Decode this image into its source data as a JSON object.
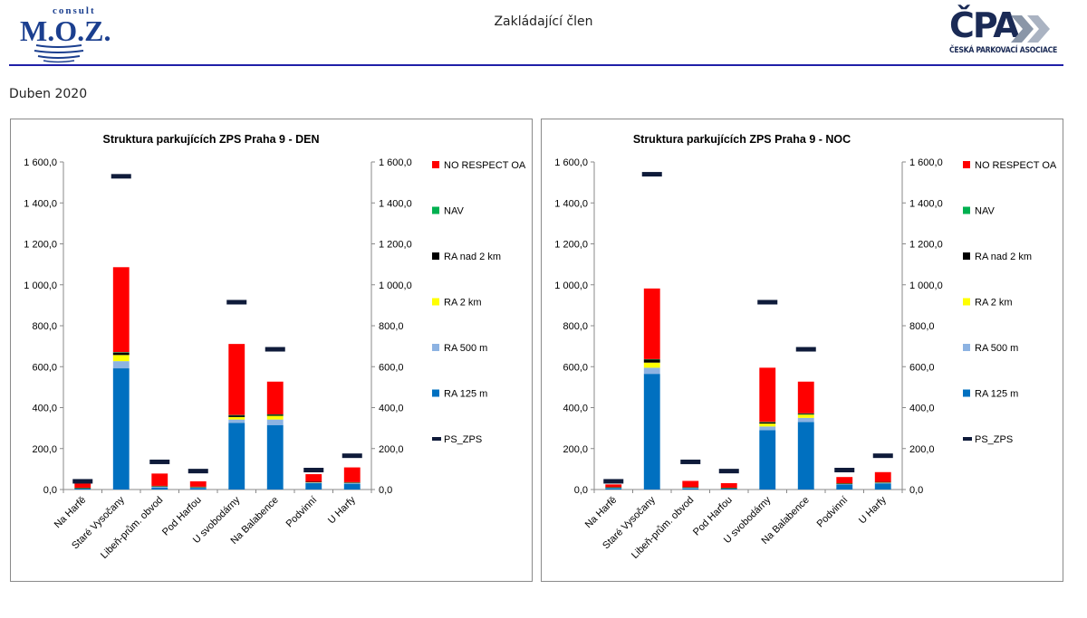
{
  "header": {
    "left_logo": {
      "top_text": "consult",
      "name": "M.O.Z."
    },
    "center_title": "Zakládající člen",
    "right_logo": {
      "big": "ČPA",
      "small": "ČESKÁ PARKOVACÍ ASOCIACE"
    }
  },
  "period": "Duben 2020",
  "colors": {
    "RA_125m": "#0070c0",
    "RA_500m": "#8db3e2",
    "RA_2km": "#ffff00",
    "RA_nad_2km": "#000000",
    "NAV": "#00b050",
    "NO_RESPECT_OA": "#ff0000",
    "PS_ZPS": "#0f1b3a"
  },
  "chart_data": [
    {
      "type": "bar",
      "stacked": true,
      "title": "Struktura parkujících ZPS Praha 9 - DEN",
      "categories": [
        "Na Harfě",
        "Staré Vysočany",
        "Libeň-prům. obvod",
        "Pod Harfou",
        "U svobodárny",
        "Na Balabence",
        "Podvinní",
        "U Harfy"
      ],
      "ylim": [
        0,
        1600
      ],
      "yticks": [
        "0,0",
        "200,0",
        "400,0",
        "600,0",
        "800,0",
        "1 000,0",
        "1 200,0",
        "1 400,0",
        "1 600,0"
      ],
      "legend_position": "right",
      "grid": false,
      "series": [
        {
          "name": "RA 125 m",
          "values": [
            5,
            592,
            10,
            8,
            325,
            315,
            32,
            28
          ]
        },
        {
          "name": "RA 500 m",
          "values": [
            2,
            35,
            5,
            3,
            17,
            27,
            3,
            5
          ]
        },
        {
          "name": "RA 2 km",
          "values": [
            1,
            30,
            2,
            2,
            12,
            18,
            2,
            2
          ]
        },
        {
          "name": "RA nad 2 km",
          "values": [
            1,
            12,
            1,
            1,
            8,
            5,
            1,
            1
          ]
        },
        {
          "name": "NAV",
          "values": [
            0,
            2,
            0,
            0,
            2,
            2,
            0,
            0
          ]
        },
        {
          "name": "NO RESPECT OA",
          "values": [
            21,
            415,
            60,
            26,
            347,
            160,
            37,
            72
          ]
        }
      ],
      "markers": {
        "name": "PS_ZPS",
        "values": [
          40,
          1530,
          135,
          90,
          915,
          685,
          95,
          165
        ]
      }
    },
    {
      "type": "bar",
      "stacked": true,
      "title": "Struktura parkujících ZPS Praha 9 - NOC",
      "categories": [
        "Na Harfě",
        "Staré Vysočany",
        "Libeň-prům. obvod",
        "Pod Harfou",
        "U svobodárny",
        "Na Balabence",
        "Podvinní",
        "U Harfy"
      ],
      "ylim": [
        0,
        1600
      ],
      "yticks": [
        "0,0",
        "200,0",
        "400,0",
        "600,0",
        "800,0",
        "1 000,0",
        "1 200,0",
        "1 400,0",
        "1 600,0"
      ],
      "legend_position": "right",
      "grid": false,
      "series": [
        {
          "name": "RA 125 m",
          "values": [
            8,
            565,
            6,
            5,
            290,
            330,
            25,
            30
          ]
        },
        {
          "name": "RA 500 m",
          "values": [
            2,
            30,
            3,
            2,
            18,
            20,
            3,
            4
          ]
        },
        {
          "name": "RA 2 km",
          "values": [
            1,
            25,
            2,
            1,
            14,
            16,
            2,
            2
          ]
        },
        {
          "name": "RA nad 2 km",
          "values": [
            1,
            15,
            1,
            1,
            6,
            4,
            1,
            1
          ]
        },
        {
          "name": "NAV",
          "values": [
            0,
            2,
            0,
            0,
            2,
            2,
            0,
            0
          ]
        },
        {
          "name": "NO RESPECT OA",
          "values": [
            13,
            345,
            30,
            22,
            265,
            155,
            30,
            48
          ]
        }
      ],
      "markers": {
        "name": "PS_ZPS",
        "values": [
          40,
          1540,
          135,
          90,
          915,
          685,
          95,
          165
        ]
      }
    }
  ]
}
